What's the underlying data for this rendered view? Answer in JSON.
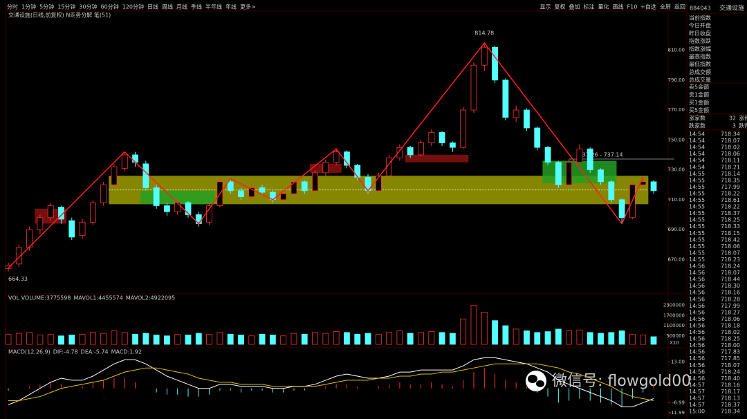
{
  "toolbar": {
    "periods": [
      "分时",
      "1分钟",
      "5分钟",
      "15分钟",
      "30分钟",
      "60分钟",
      "120分钟",
      "日线",
      "周线",
      "月线",
      "季线",
      "半年线",
      "年线",
      "更多>"
    ],
    "active": 7,
    "tools": [
      "显示",
      "复权",
      "叠加",
      "标注",
      "量化",
      "画线",
      "F10",
      "+自选",
      "全屏",
      "返回"
    ]
  },
  "main_chart": {
    "title": "交通设施(日线,前复权) N走势分解 笔(51)",
    "ylim": [
      647.5,
      835.7
    ],
    "yticks": [
      {
        "value": 670,
        "label": "670.00"
      },
      {
        "value": 690,
        "label": "690.00"
      },
      {
        "value": 710,
        "label": "710.00"
      },
      {
        "value": 730,
        "label": "730.00"
      },
      {
        "value": 750,
        "label": "750.00"
      },
      {
        "value": 770,
        "label": "770.00"
      },
      {
        "value": 790,
        "label": "790.00"
      },
      {
        "value": 810,
        "label": "810.00"
      }
    ],
    "up_color": "#ff3232",
    "down_color": "#54ffff",
    "candles": [
      [
        664,
        668,
        662,
        666
      ],
      [
        667,
        680,
        665,
        678
      ],
      [
        678,
        692,
        676,
        690
      ],
      [
        690,
        700,
        687,
        698
      ],
      [
        698,
        708,
        696,
        706
      ],
      [
        705,
        706,
        694,
        697
      ],
      [
        696,
        698,
        683,
        685
      ],
      [
        686,
        697,
        684,
        695
      ],
      [
        695,
        710,
        693,
        708
      ],
      [
        708,
        722,
        706,
        720
      ],
      [
        720,
        734,
        718,
        732
      ],
      [
        731,
        742,
        729,
        740
      ],
      [
        740,
        742,
        732,
        735
      ],
      [
        734,
        736,
        716,
        718
      ],
      [
        718,
        720,
        704,
        706
      ],
      [
        706,
        708,
        699,
        702
      ],
      [
        702,
        711,
        700,
        708
      ],
      [
        708,
        709,
        698,
        700
      ],
      [
        700,
        702,
        692,
        694
      ],
      [
        695,
        708,
        693,
        706
      ],
      [
        706,
        725,
        705,
        722
      ],
      [
        722,
        724,
        714,
        716
      ],
      [
        716,
        718,
        710,
        712
      ],
      [
        712,
        720,
        711,
        718
      ],
      [
        718,
        720,
        713,
        715
      ],
      [
        715,
        716,
        708,
        710
      ],
      [
        710,
        716,
        709,
        714
      ],
      [
        714,
        724,
        713,
        722
      ],
      [
        722,
        723,
        714,
        716
      ],
      [
        716,
        730,
        715,
        728
      ],
      [
        728,
        737,
        726,
        735
      ],
      [
        735,
        744,
        733,
        742
      ],
      [
        742,
        743,
        731,
        733
      ],
      [
        733,
        734,
        723,
        725
      ],
      [
        725,
        727,
        714,
        716
      ],
      [
        716,
        728,
        715,
        726
      ],
      [
        726,
        740,
        725,
        738
      ],
      [
        738,
        747,
        736,
        745
      ],
      [
        745,
        746,
        738,
        740
      ],
      [
        740,
        750,
        739,
        748
      ],
      [
        748,
        757,
        746,
        755
      ],
      [
        755,
        756,
        746,
        748
      ],
      [
        748,
        749,
        742,
        745
      ],
      [
        745,
        772,
        744,
        770
      ],
      [
        770,
        802,
        768,
        800
      ],
      [
        800,
        815,
        796,
        812
      ],
      [
        812,
        813,
        788,
        790
      ],
      [
        790,
        791,
        763,
        765
      ],
      [
        765,
        773,
        762,
        770
      ],
      [
        770,
        771,
        756,
        758
      ],
      [
        758,
        759,
        743,
        745
      ],
      [
        745,
        746,
        733,
        735
      ],
      [
        735,
        736,
        718,
        720
      ],
      [
        720,
        737,
        719,
        735
      ],
      [
        735,
        747,
        733,
        744
      ],
      [
        744,
        745,
        728,
        730
      ],
      [
        730,
        731,
        720,
        722
      ],
      [
        722,
        723,
        708,
        710
      ],
      [
        710,
        711,
        694,
        698
      ],
      [
        698,
        722,
        697,
        720
      ],
      [
        720,
        725,
        718,
        722
      ],
      [
        722,
        723,
        714,
        716
      ]
    ],
    "zones": [
      {
        "from": 10,
        "to": 60,
        "low": 707,
        "high": 726,
        "color": "#a8a800"
      },
      {
        "from": 13,
        "to": 19,
        "low": 707,
        "high": 716,
        "color": "#22a022"
      },
      {
        "from": 51,
        "to": 57,
        "low": 721,
        "high": 736,
        "color": "#22a022"
      },
      {
        "from": 3,
        "to": 5,
        "low": 694,
        "high": 704,
        "color": "#8c1010"
      },
      {
        "from": 29,
        "to": 31,
        "low": 728,
        "high": 734,
        "color": "#8c1010"
      },
      {
        "from": 38,
        "to": 43,
        "low": 735,
        "high": 740,
        "color": "#8c1010"
      }
    ],
    "zigzag": [
      [
        0,
        664.33
      ],
      [
        11,
        742
      ],
      [
        18,
        694
      ],
      [
        21,
        724
      ],
      [
        25,
        710
      ],
      [
        31,
        744
      ],
      [
        34,
        716
      ],
      [
        45,
        814.78
      ],
      [
        58,
        694
      ],
      [
        60,
        725
      ]
    ],
    "zigzag_color": "#ff2020",
    "high_label": "814.78",
    "low_label": "664.33",
    "annotation": "737.26 - 737.14",
    "annotation_level": 737.2
  },
  "volume": {
    "header": [
      "VOL VOLUME:3775598",
      "MAVOL1:4455574",
      "MAVOL2:4922095"
    ],
    "header_colors": [
      "#cccccc",
      "#e8c000",
      "#d040d0"
    ],
    "ylim": [
      0,
      2450000
    ],
    "yticks": [
      500000,
      1100000,
      1700000,
      2300000
    ],
    "unit": "X10",
    "values": [
      600000,
      650000,
      700000,
      550000,
      600000,
      500000,
      550000,
      600000,
      700000,
      650000,
      800000,
      700000,
      600000,
      650000,
      550000,
      500000,
      600000,
      550000,
      650000,
      600000,
      700000,
      600000,
      550000,
      500000,
      600000,
      550000,
      500000,
      650000,
      600000,
      700000,
      650000,
      750000,
      700000,
      600000,
      650000,
      600000,
      700000,
      800000,
      650000,
      700000,
      750000,
      700000,
      650000,
      1500000,
      2300000,
      1900000,
      1400000,
      1100000,
      900000,
      800000,
      700000,
      750000,
      900000,
      800000,
      850000,
      700000,
      650000,
      700000,
      800000,
      600000,
      550000,
      450000
    ]
  },
  "macd": {
    "header": [
      "MACD(12,26,9)",
      "DIF:-4.78",
      "DEA:-5.74",
      "MACD:1.92"
    ],
    "header_colors": [
      "#cccccc",
      "#ffffff",
      "#e8c000",
      "#d040d0"
    ],
    "ylim": [
      -14.3,
      19.2
    ],
    "yticks": [
      {
        "value": 13,
        "label": "13.00"
      },
      {
        "value": -6.99,
        "label": "-6.99"
      },
      {
        "value": -11.99,
        "label": "-11.99"
      }
    ],
    "hist": [
      -1,
      0,
      1,
      2,
      3,
      2,
      0,
      1,
      3,
      4,
      5,
      5,
      3,
      0,
      -2,
      -3,
      -3,
      -4,
      -4,
      -3,
      -1,
      -1,
      -2,
      -1,
      -1,
      -2,
      -2,
      -1,
      -1,
      0,
      1,
      2,
      2,
      1,
      0,
      1,
      2,
      3,
      2,
      2,
      3,
      2,
      1,
      4,
      8,
      10,
      7,
      4,
      3,
      1,
      -2,
      -4,
      -7,
      -6,
      -5,
      -6,
      -7,
      -8,
      -9,
      -5,
      -2,
      2
    ],
    "dif": [
      -8,
      -6,
      -3,
      0,
      3,
      5,
      4,
      4,
      6,
      9,
      12,
      14,
      14,
      12,
      9,
      6,
      4,
      2,
      0,
      0,
      2,
      2,
      1,
      1,
      1,
      0,
      0,
      1,
      1,
      2,
      4,
      6,
      7,
      6,
      5,
      5,
      6,
      8,
      8,
      9,
      9,
      9,
      9,
      11,
      14,
      15,
      15,
      14,
      13,
      12,
      10,
      8,
      4,
      2,
      0,
      -2,
      -4,
      -6,
      -9,
      -9,
      -7,
      -5
    ],
    "dea": [
      -6,
      -6,
      -5,
      -4,
      -2,
      0,
      1,
      2,
      3,
      4,
      6,
      8,
      9,
      10,
      10,
      9,
      8,
      7,
      5,
      4,
      3,
      3,
      2,
      2,
      2,
      1,
      1,
      1,
      1,
      1,
      2,
      3,
      4,
      4,
      4,
      5,
      5,
      6,
      6,
      7,
      7,
      8,
      8,
      9,
      10,
      11,
      12,
      12,
      12,
      12,
      12,
      11,
      10,
      8,
      7,
      5,
      3,
      1,
      -2,
      -4,
      -5,
      -6
    ]
  },
  "watermark": "微信号: flowgold00",
  "side_panel": {
    "code": "884043",
    "name": "交通设施",
    "fields": [
      "当前指数",
      "今日开盘",
      "昨日收盘",
      "指数涨跌",
      "指数涨幅",
      "最高指数",
      "最低指数",
      "总成交额",
      "总成交量"
    ],
    "orders": [
      "卖5金额",
      "卖1金额",
      "买1金额",
      "买5金额"
    ],
    "breadth": [
      [
        "涨家数",
        "32",
        "涨停"
      ],
      [
        "跌家数",
        "3",
        "跌停"
      ]
    ],
    "ticks": [
      [
        "14:54",
        "718.34"
      ],
      [
        "14:54",
        "718.07"
      ],
      [
        "14:54",
        "718.02"
      ],
      [
        "14:54",
        "718.06"
      ],
      [
        "14:54",
        "718.11"
      ],
      [
        "14:54",
        "718.21"
      ],
      [
        "14:55",
        "718.14"
      ],
      [
        "14:55",
        "718.35"
      ],
      [
        "14:55",
        "717.99"
      ],
      [
        "14:55",
        "718.22"
      ],
      [
        "14:55",
        "718.61"
      ],
      [
        "14:55",
        "718.22"
      ],
      [
        "14:55",
        "718.37"
      ],
      [
        "14:55",
        "718.25"
      ],
      [
        "14:55",
        "718.33"
      ],
      [
        "14:55",
        "718.15"
      ],
      [
        "14:55",
        "718.42"
      ],
      [
        "14:55",
        "718.06"
      ],
      [
        "14:55",
        "718.07"
      ],
      [
        "14:55",
        "718.23"
      ],
      [
        "14:56",
        "718.24"
      ],
      [
        "14:56",
        "718.07"
      ],
      [
        "14:56",
        "718.44"
      ],
      [
        "14:56",
        "718.30"
      ],
      [
        "14:56",
        "718.16"
      ],
      [
        "14:56",
        "718.28"
      ],
      [
        "14:56",
        "717.99"
      ],
      [
        "14:56",
        "718.27"
      ],
      [
        "14:56",
        "718.06"
      ],
      [
        "14:56",
        "718.18"
      ],
      [
        "14:56",
        "718.02"
      ],
      [
        "14:56",
        "718.25"
      ],
      [
        "14:56",
        "718.00"
      ],
      [
        "14:56",
        "717.83"
      ],
      [
        "14:56",
        "717.85"
      ],
      [
        "14:56",
        "718.07"
      ],
      [
        "14:56",
        "718.24"
      ],
      [
        "14:56",
        "718.40"
      ],
      [
        "14:57",
        "718.16"
      ],
      [
        "14:57",
        "718.17"
      ],
      [
        "14:57",
        "718.13"
      ],
      [
        "14:57",
        "718.37"
      ],
      [
        "15:00",
        "718.34"
      ]
    ]
  }
}
